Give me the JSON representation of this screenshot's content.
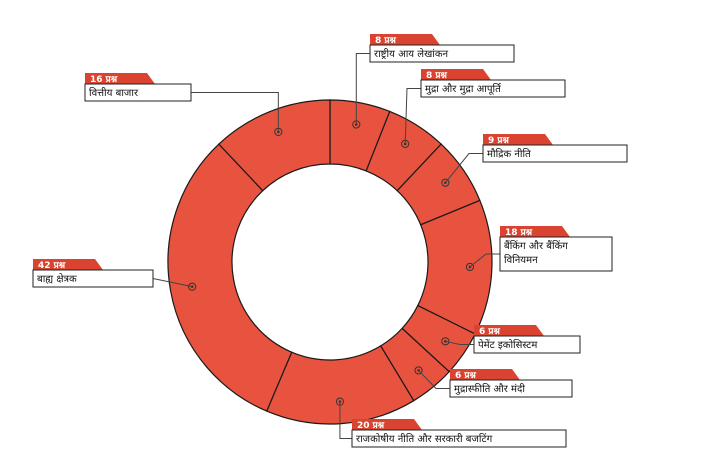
{
  "chart_data": {
    "type": "pie",
    "style": "donut",
    "slice_color": "#e8533f",
    "tab_color": "#d9432f",
    "edge_color": "#1a1a1a",
    "slices": [
      {
        "label": "राष्ट्रीय आय लेखांकन",
        "badge": "8 प्रश्न",
        "value": 8
      },
      {
        "label": "मुद्रा और मुद्रा आपूर्ति",
        "badge": "8 प्रश्न",
        "value": 8
      },
      {
        "label": "मौद्रिक नीति",
        "badge": "9 प्रश्न",
        "value": 9
      },
      {
        "label": "बैंकिंग और बैंकिंग विनियमन",
        "badge": "18 प्रश्न",
        "value": 18
      },
      {
        "label": "पेमेंट इकोसिस्टम",
        "badge": "6 प्रश्न",
        "value": 6
      },
      {
        "label": "मुद्रास्फीति और मंदी",
        "badge": "6 प्रश्न",
        "value": 6
      },
      {
        "label": "राजकोषीय नीति और सरकारी बजटिंग",
        "badge": "20 प्रश्न",
        "value": 20
      },
      {
        "label": "बाह्य क्षेत्रक",
        "badge": "42 प्रश्न",
        "value": 42
      },
      {
        "label": "वित्तीय बाजार",
        "badge": "16 प्रश्न",
        "value": 16
      }
    ]
  }
}
